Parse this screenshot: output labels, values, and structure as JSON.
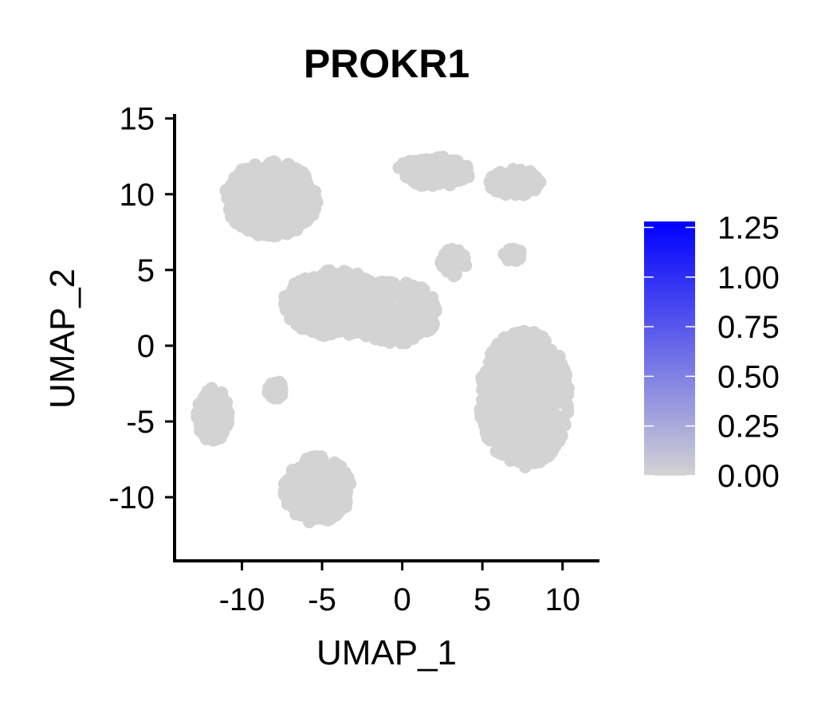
{
  "chart_data": {
    "type": "scatter",
    "title": "PROKR1",
    "xlabel": "UMAP_1",
    "ylabel": "UMAP_2",
    "xlim": [
      -14.2,
      12.3
    ],
    "ylim": [
      -14.2,
      15.3
    ],
    "xticks": [
      -10,
      -5,
      0,
      5,
      10
    ],
    "xtick_labels": [
      "-10",
      "-5",
      "0",
      "5",
      "10"
    ],
    "yticks": [
      -10,
      -5,
      0,
      5,
      10,
      15
    ],
    "ytick_labels": [
      "-10",
      "-5",
      "0",
      "5",
      "10",
      "15"
    ],
    "grid": false,
    "point_color": "#d3d3d3",
    "expression_all_cells": 0,
    "colorbar": {
      "min": 0,
      "max": 1.28,
      "low_color": "#d3d3d3",
      "high_color": "#0000ff",
      "ticks": [
        0,
        0.25,
        0.5,
        0.75,
        1.0,
        1.25
      ],
      "tick_labels": [
        "0.00",
        "0.25",
        "0.50",
        "0.75",
        "1.00",
        "1.25"
      ],
      "placement": "right"
    },
    "clusters": [
      {
        "center": [
          -8.2,
          9.7
        ],
        "spread": [
          2.9,
          2.5
        ]
      },
      {
        "center": [
          2.0,
          11.5
        ],
        "spread": [
          2.3,
          1.0
        ]
      },
      {
        "center": [
          7.0,
          10.8
        ],
        "spread": [
          1.6,
          0.9
        ]
      },
      {
        "center": [
          -4.2,
          2.8
        ],
        "spread": [
          3.2,
          2.2
        ]
      },
      {
        "center": [
          -0.5,
          2.2
        ],
        "spread": [
          2.7,
          2.1
        ]
      },
      {
        "center": [
          3.2,
          5.5
        ],
        "spread": [
          0.8,
          0.9
        ]
      },
      {
        "center": [
          7.6,
          -3.5
        ],
        "spread": [
          2.8,
          4.5
        ]
      },
      {
        "center": [
          -11.8,
          -4.6
        ],
        "spread": [
          1.0,
          1.8
        ]
      },
      {
        "center": [
          -5.3,
          -9.5
        ],
        "spread": [
          2.1,
          2.2
        ]
      },
      {
        "center": [
          -7.9,
          -2.9
        ],
        "spread": [
          0.5,
          0.6
        ]
      },
      {
        "center": [
          6.9,
          6.0
        ],
        "spread": [
          0.6,
          0.4
        ]
      }
    ]
  }
}
